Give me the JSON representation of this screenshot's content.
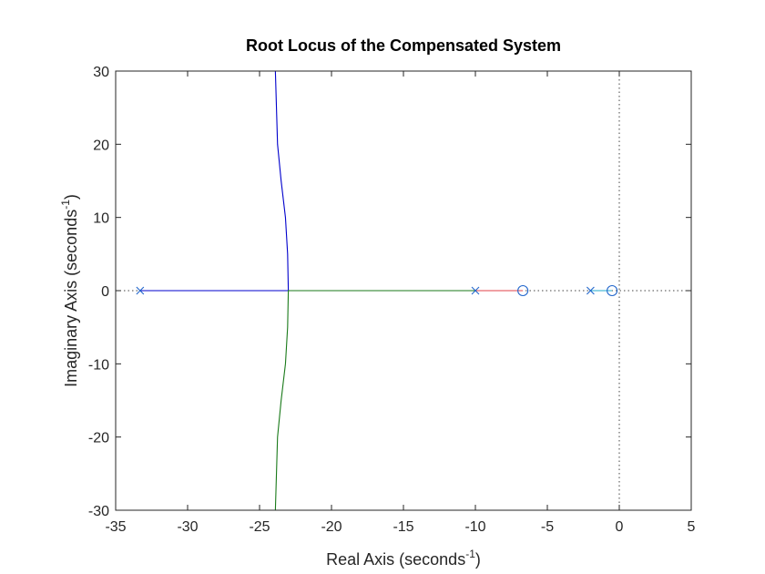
{
  "chart_data": {
    "type": "line",
    "title": "Root Locus of the Compensated System",
    "xlabel": {
      "base": "Real Axis (seconds",
      "sup": "-1",
      "close": ")"
    },
    "ylabel": {
      "base": "Imaginary Axis (seconds",
      "sup": "-1",
      "close": ")"
    },
    "xlim": [
      -35,
      5
    ],
    "ylim": [
      -30,
      30
    ],
    "xticks": [
      -35,
      -30,
      -25,
      -20,
      -15,
      -10,
      -5,
      0,
      5
    ],
    "xtick_labels": [
      "-35",
      "-30",
      "-25",
      "-20",
      "-15",
      "-10",
      "-5",
      "0",
      "5"
    ],
    "yticks": [
      -30,
      -20,
      -10,
      0,
      10,
      20,
      30
    ],
    "ytick_labels": [
      "-30",
      "-20",
      "-10",
      "0",
      "10",
      "20",
      "30"
    ],
    "grid": false,
    "reference_lines": [
      {
        "axis": "x",
        "value": 0
      },
      {
        "axis": "y",
        "value": 0
      }
    ],
    "series": [
      {
        "color": "#0000cc",
        "x": [
          -33.3,
          -25.0,
          -23.0,
          -23.05,
          -23.2,
          -23.5,
          -23.75,
          -23.9
        ],
        "y": [
          0,
          0,
          0,
          5,
          10,
          15,
          20,
          30
        ]
      },
      {
        "color": "#1a7a1a",
        "x": [
          -10,
          -18,
          -23.0,
          -23.05,
          -23.2,
          -23.5,
          -23.75,
          -23.9
        ],
        "y": [
          0,
          0,
          0,
          -5,
          -10,
          -15,
          -20,
          -30
        ]
      },
      {
        "color": "#e0424a",
        "x": [
          -10,
          -8.3,
          -6.7
        ],
        "y": [
          0,
          0,
          0
        ]
      },
      {
        "color": "#22aacc",
        "x": [
          -2,
          -1.2,
          -0.5
        ],
        "y": [
          0,
          0,
          0
        ]
      }
    ],
    "poles": [
      {
        "x": -33.3,
        "y": 0,
        "color": "#2266cc"
      },
      {
        "x": -10,
        "y": 0,
        "color": "#2266cc"
      },
      {
        "x": -2,
        "y": 0,
        "color": "#2266cc"
      }
    ],
    "zeros": [
      {
        "x": -6.7,
        "y": 0,
        "color": "#2266cc"
      },
      {
        "x": -0.5,
        "y": 0,
        "color": "#2266cc"
      }
    ]
  }
}
